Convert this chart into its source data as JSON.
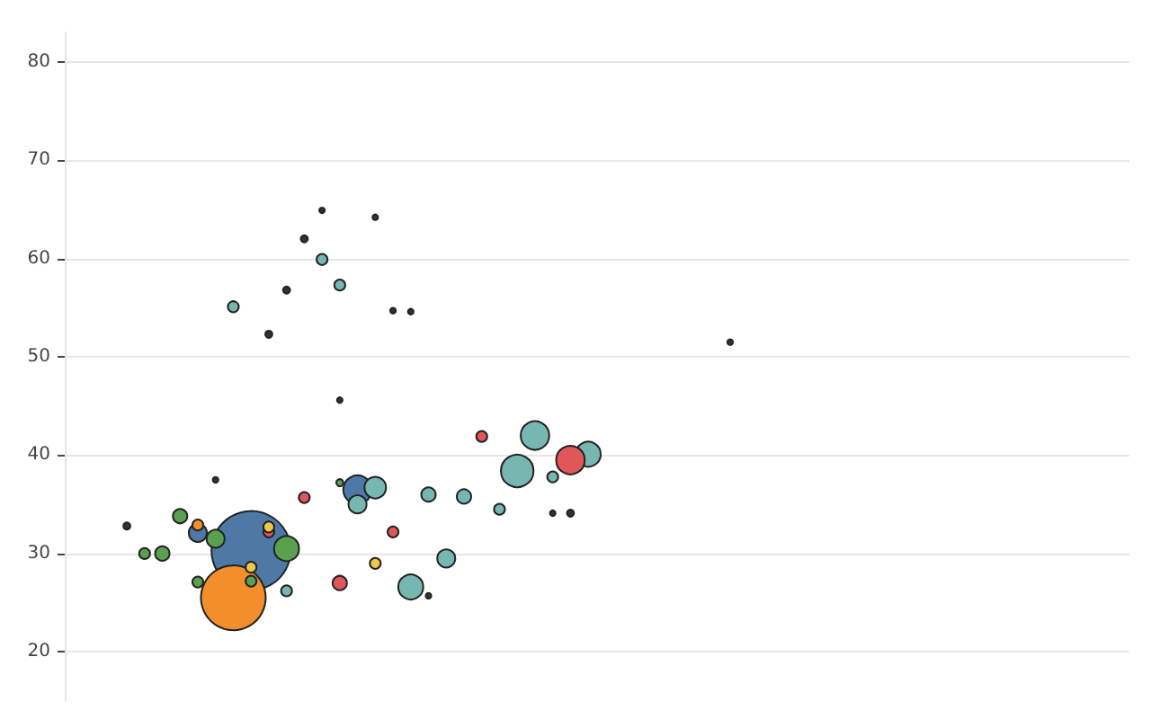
{
  "chart_data": {
    "type": "bubble",
    "categories": [
      null,
      null,
      null,
      null,
      null,
      null,
      null,
      null,
      null,
      null,
      null,
      null,
      null,
      null,
      null,
      null,
      null,
      null,
      null,
      null,
      null,
      null,
      null,
      null,
      null,
      null,
      null,
      null,
      null,
      null,
      null,
      null,
      null,
      null,
      null,
      null,
      null,
      null,
      null,
      null,
      null,
      null,
      null,
      null,
      null,
      null,
      null,
      null,
      null,
      null,
      null,
      null,
      null,
      null,
      null,
      null,
      null,
      null,
      null,
      null
    ],
    "series": [
      {
        "color": "#4e79a7",
        "values": [
          null,
          null,
          null,
          null,
          null,
          null,
          null,
          32.1,
          null,
          null,
          30.3,
          null,
          null,
          null,
          null,
          null,
          36.5,
          null,
          null,
          null,
          null,
          null,
          null,
          null,
          null,
          null,
          null,
          null,
          null,
          null,
          null,
          null,
          null,
          null,
          null,
          null,
          null,
          null,
          null,
          null,
          null,
          null,
          null,
          null,
          null,
          null,
          null,
          null,
          null,
          null,
          null,
          null,
          null,
          null,
          null,
          null,
          null,
          null,
          null,
          null
        ],
        "sizes": [
          null,
          null,
          null,
          null,
          null,
          null,
          null,
          0.052,
          null,
          null,
          1,
          null,
          null,
          null,
          null,
          null,
          0.13,
          null,
          null,
          null,
          null,
          null,
          null,
          null,
          null,
          null,
          null,
          null,
          null,
          null,
          null,
          null,
          null,
          null,
          null,
          null,
          null,
          null,
          null,
          null,
          null,
          null,
          null,
          null,
          null,
          null,
          null,
          null,
          null,
          null,
          null,
          null,
          null,
          null,
          null,
          null,
          null,
          null,
          null,
          null
        ]
      },
      {
        "color": "#f28e2b",
        "values": [
          null,
          null,
          null,
          null,
          null,
          null,
          null,
          32.9,
          null,
          25.5,
          null,
          null,
          null,
          null,
          null,
          null,
          null,
          null,
          null,
          null,
          null,
          null,
          null,
          null,
          null,
          null,
          null,
          null,
          null,
          null,
          null,
          null,
          null,
          null,
          null,
          null,
          null,
          null,
          null,
          null,
          null,
          null,
          null,
          null,
          null,
          null,
          null,
          null,
          null,
          null,
          null,
          null,
          null,
          null,
          null,
          null,
          null,
          null,
          null,
          null
        ],
        "sizes": [
          null,
          null,
          null,
          null,
          null,
          null,
          null,
          0.019,
          null,
          0.67,
          null,
          null,
          null,
          null,
          null,
          null,
          null,
          null,
          null,
          null,
          null,
          null,
          null,
          null,
          null,
          null,
          null,
          null,
          null,
          null,
          null,
          null,
          null,
          null,
          null,
          null,
          null,
          null,
          null,
          null,
          null,
          null,
          null,
          null,
          null,
          null,
          null,
          null,
          null,
          null,
          null,
          null,
          null,
          null,
          null,
          null,
          null,
          null,
          null,
          null
        ]
      },
      {
        "color": "#59a14f",
        "values": [
          null,
          null,
          null,
          null,
          30.0,
          30.0,
          33.8,
          27.1,
          31.5,
          null,
          27.2,
          null,
          30.5,
          null,
          null,
          37.2,
          null,
          null,
          null,
          null,
          null,
          null,
          null,
          null,
          null,
          null,
          null,
          null,
          null,
          null,
          null,
          null,
          null,
          null,
          null,
          null,
          null,
          null,
          null,
          null,
          null,
          null,
          null,
          null,
          null,
          null,
          null,
          null,
          null,
          null,
          null,
          null,
          null,
          null,
          null,
          null,
          null,
          null,
          null,
          null
        ],
        "sizes": [
          null,
          null,
          null,
          null,
          0.019,
          0.033,
          0.033,
          0.019,
          0.052,
          null,
          0.019,
          null,
          0.1,
          null,
          null,
          0.008,
          null,
          null,
          null,
          null,
          null,
          null,
          null,
          null,
          null,
          null,
          null,
          null,
          null,
          null,
          null,
          null,
          null,
          null,
          null,
          null,
          null,
          null,
          null,
          null,
          null,
          null,
          null,
          null,
          null,
          null,
          null,
          null,
          null,
          null,
          null,
          null,
          null,
          null,
          null,
          null,
          null,
          null,
          null,
          null
        ]
      },
      {
        "color": "#76b7b2",
        "values": [
          null,
          null,
          null,
          null,
          null,
          null,
          null,
          null,
          null,
          55.1,
          null,
          null,
          26.2,
          null,
          59.9,
          57.3,
          35.0,
          36.7,
          null,
          26.6,
          36.0,
          29.5,
          35.8,
          null,
          34.5,
          38.4,
          42.0,
          37.8,
          null,
          40.1,
          null,
          null,
          null,
          null,
          null,
          null,
          null,
          null,
          null,
          null,
          null,
          null,
          null,
          null,
          null,
          null,
          null,
          null,
          null,
          null,
          null,
          null,
          null,
          null,
          null,
          null,
          null,
          null,
          null,
          null
        ],
        "sizes": [
          null,
          null,
          null,
          null,
          null,
          null,
          null,
          null,
          null,
          0.019,
          null,
          null,
          0.019,
          null,
          0.019,
          0.019,
          0.052,
          0.074,
          null,
          0.1,
          0.033,
          0.052,
          0.033,
          null,
          0.019,
          0.17,
          0.13,
          0.019,
          null,
          0.1,
          null,
          null,
          null,
          null,
          null,
          null,
          null,
          null,
          null,
          null,
          null,
          null,
          null,
          null,
          null,
          null,
          null,
          null,
          null,
          null,
          null,
          null,
          null,
          null,
          null,
          null,
          null,
          null,
          null,
          null
        ]
      },
      {
        "color": "#e15759",
        "values": [
          null,
          null,
          null,
          null,
          null,
          null,
          null,
          null,
          null,
          null,
          null,
          32.2,
          null,
          35.7,
          null,
          27.0,
          null,
          null,
          32.2,
          null,
          null,
          null,
          null,
          41.9,
          null,
          null,
          null,
          null,
          39.5,
          null,
          null,
          null,
          null,
          null,
          null,
          null,
          null,
          null,
          null,
          null,
          null,
          null,
          null,
          null,
          null,
          null,
          null,
          null,
          null,
          null,
          null,
          null,
          null,
          null,
          null,
          null,
          null,
          null,
          null,
          null
        ],
        "sizes": [
          null,
          null,
          null,
          null,
          null,
          null,
          null,
          null,
          null,
          null,
          null,
          0.019,
          null,
          0.019,
          null,
          0.033,
          null,
          null,
          0.019,
          null,
          null,
          null,
          null,
          0.019,
          null,
          null,
          null,
          null,
          0.13,
          null,
          null,
          null,
          null,
          null,
          null,
          null,
          null,
          null,
          null,
          null,
          null,
          null,
          null,
          null,
          null,
          null,
          null,
          null,
          null,
          null,
          null,
          null,
          null,
          null,
          null,
          null,
          null,
          null,
          null,
          null
        ]
      },
      {
        "color": "#edc948",
        "values": [
          null,
          null,
          null,
          null,
          null,
          null,
          null,
          null,
          null,
          null,
          28.6,
          32.7,
          null,
          null,
          null,
          null,
          null,
          29.0,
          null,
          null,
          null,
          null,
          null,
          null,
          null,
          null,
          null,
          null,
          null,
          null,
          null,
          null,
          null,
          null,
          null,
          null,
          null,
          null,
          null,
          null,
          null,
          null,
          null,
          null,
          null,
          null,
          null,
          null,
          null,
          null,
          null,
          null,
          null,
          null,
          null,
          null,
          null,
          null,
          null,
          null
        ],
        "sizes": [
          null,
          null,
          null,
          null,
          null,
          null,
          null,
          null,
          null,
          null,
          0.019,
          0.019,
          null,
          null,
          null,
          null,
          null,
          0.019,
          null,
          null,
          null,
          null,
          null,
          null,
          null,
          null,
          null,
          null,
          null,
          null,
          null,
          null,
          null,
          null,
          null,
          null,
          null,
          null,
          null,
          null,
          null,
          null,
          null,
          null,
          null,
          null,
          null,
          null,
          null,
          null,
          null,
          null,
          null,
          null,
          null,
          null,
          null,
          null,
          null,
          null
        ]
      },
      {
        "color": "#333333",
        "values": [
          null,
          null,
          null,
          32.8,
          null,
          null,
          null,
          null,
          37.5,
          null,
          null,
          52.3,
          56.8,
          62.0,
          64.9,
          45.6,
          null,
          64.2,
          54.7,
          54.6,
          25.7,
          null,
          null,
          null,
          null,
          null,
          null,
          34.1,
          34.1,
          null,
          null,
          null,
          null,
          null,
          null,
          null,
          null,
          51.5,
          null,
          null,
          null,
          null,
          null,
          null,
          null,
          null,
          null,
          null,
          null,
          null,
          null,
          null,
          null,
          null,
          null,
          null,
          null,
          null,
          null,
          null
        ],
        "sizes": [
          null,
          null,
          null,
          0.008,
          null,
          null,
          null,
          null,
          0.005,
          null,
          null,
          0.008,
          0.008,
          0.008,
          0.005,
          0.005,
          null,
          0.005,
          0.005,
          0.005,
          0.005,
          null,
          null,
          null,
          null,
          null,
          null,
          0.005,
          0.008,
          null,
          null,
          null,
          null,
          null,
          null,
          null,
          null,
          0.005,
          null,
          null,
          null,
          null,
          null,
          null,
          null,
          null,
          null,
          null,
          null,
          null,
          null,
          null,
          null,
          null,
          null,
          null,
          null,
          null,
          null,
          null
        ]
      }
    ],
    "ylim": [
      15,
      83
    ],
    "yticks": [
      20,
      30,
      40,
      50,
      60,
      70,
      80
    ],
    "grid": "y",
    "tick_labels": "y",
    "marker": "circle"
  }
}
